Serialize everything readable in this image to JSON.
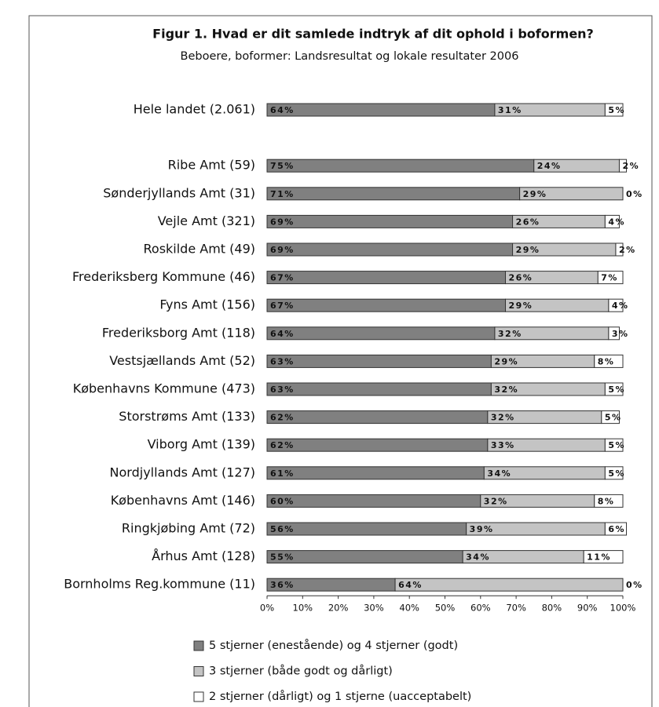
{
  "chart_data": {
    "type": "stacked-barh",
    "title": "Figur 1. Hvad er dit samlede indtryk af dit ophold i boformen?",
    "subtitle": "Beboere, boformer: Landsresultat og lokale resultater 2006",
    "categories": [
      "Hele landet (2.061)",
      null,
      "Ribe Amt (59)",
      "Sønderjyllands Amt (31)",
      "Vejle Amt (321)",
      "Roskilde Amt (49)",
      "Frederiksberg Kommune (46)",
      "Fyns Amt (156)",
      "Frederiksborg Amt (118)",
      "Vestsjællands Amt (52)",
      "Københavns Kommune (473)",
      "Storstrøms Amt (133)",
      "Viborg Amt (139)",
      "Nordjyllands Amt (127)",
      "Københavns Amt (146)",
      "Ringkjøbing Amt (72)",
      "Århus Amt (128)",
      "Bornholms Reg.kommune (11)"
    ],
    "series": [
      {
        "name": "5 stjerner (enestående) og 4 stjerner (godt)",
        "color": "#808080",
        "values": [
          64,
          null,
          75,
          71,
          69,
          69,
          67,
          67,
          64,
          63,
          63,
          62,
          62,
          61,
          60,
          56,
          55,
          36
        ],
        "value_labels": [
          "64%",
          null,
          "75%",
          "71%",
          "69%",
          "69%",
          "67%",
          "67%",
          "64%",
          "63%",
          "63%",
          "62%",
          "62%",
          "61%",
          "60%",
          "56%",
          "55%",
          "36%"
        ]
      },
      {
        "name": "3 stjerner (både godt og dårligt)",
        "color": "#c4c4c4",
        "values": [
          31,
          null,
          24,
          29,
          26,
          29,
          26,
          29,
          32,
          29,
          32,
          32,
          33,
          34,
          32,
          39,
          34,
          64
        ],
        "value_labels": [
          "31%",
          null,
          "24%",
          "29%",
          "26%",
          "29%",
          "26%",
          "29%",
          "32%",
          "29%",
          "32%",
          "32%",
          "33%",
          "34%",
          "32%",
          "39%",
          "34%",
          "64%"
        ]
      },
      {
        "name": "2 stjerner (dårligt) og 1 stjerne (uacceptabelt)",
        "color": "#ffffff",
        "values": [
          5,
          null,
          2,
          0,
          4,
          2,
          7,
          4,
          3,
          8,
          5,
          5,
          5,
          5,
          8,
          6,
          11,
          0
        ],
        "value_labels": [
          "5%",
          null,
          "2%",
          "0%",
          "4%",
          "2%",
          "7%",
          "4%",
          "3%",
          "8%",
          "5%",
          "5%",
          "5%",
          "5%",
          "8%",
          "6%",
          "11%",
          "0%"
        ]
      }
    ],
    "xlim": [
      0,
      100
    ],
    "xticks": [
      {
        "value": 0,
        "label": "0%"
      },
      {
        "value": 10,
        "label": "10%"
      },
      {
        "value": 20,
        "label": "20%"
      },
      {
        "value": 30,
        "label": "30%"
      },
      {
        "value": 40,
        "label": "40%"
      },
      {
        "value": 50,
        "label": "50%"
      },
      {
        "value": 60,
        "label": "60%"
      },
      {
        "value": 70,
        "label": "70%"
      },
      {
        "value": 80,
        "label": "80%"
      },
      {
        "value": 90,
        "label": "90%"
      },
      {
        "value": 100,
        "label": "100%"
      }
    ]
  }
}
